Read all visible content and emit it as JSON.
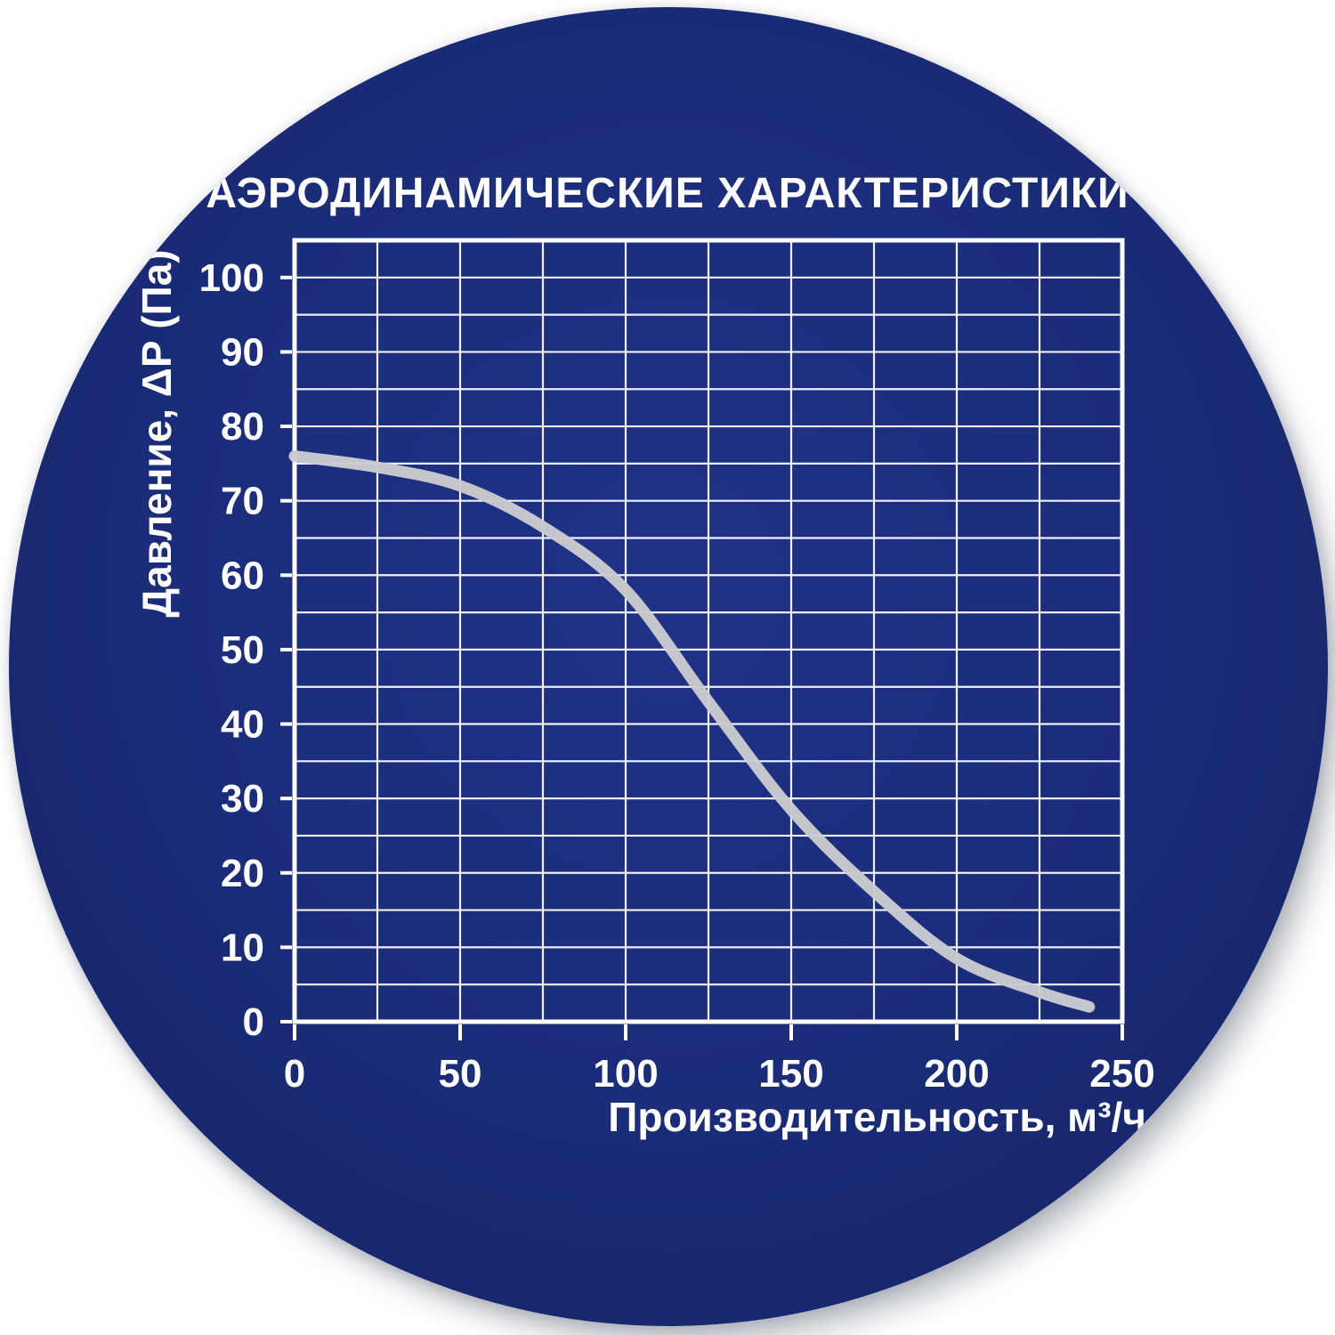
{
  "panel": {
    "shape": "circle",
    "background_outer": "#ffffff",
    "circle_fill_center": "#203288",
    "circle_fill_edge": "#121f58"
  },
  "colors": {
    "grid_line": "#eef1f7",
    "axis_frame": "#ffffff",
    "tick_mark": "#ffffff",
    "text": "#ffffff",
    "curve": "#c9cbce"
  },
  "chart_data": {
    "type": "line",
    "title": "АЭРОДИНАМИЧЕСКИЕ ХАРАКТЕРИСТИКИ",
    "xlabel": "Производительность, м³/ч",
    "ylabel": "Давление, ΔР (Па)",
    "xlim": [
      0,
      250
    ],
    "ylim": [
      0,
      105
    ],
    "x_ticks": [
      0,
      50,
      100,
      150,
      200,
      250
    ],
    "y_ticks": [
      0,
      10,
      20,
      30,
      40,
      50,
      60,
      70,
      80,
      90,
      100
    ],
    "x_minor_step": 25,
    "y_minor_step": 5,
    "grid": true,
    "legend_position": "none",
    "series": [
      {
        "name": "pressure-flow-curve",
        "color": "#c9cbce",
        "x": [
          0,
          25,
          50,
          75,
          100,
          125,
          150,
          175,
          200,
          225,
          240
        ],
        "y": [
          76,
          74.5,
          72,
          66.5,
          58,
          43,
          28.5,
          17.5,
          8.5,
          4,
          2
        ]
      }
    ]
  }
}
